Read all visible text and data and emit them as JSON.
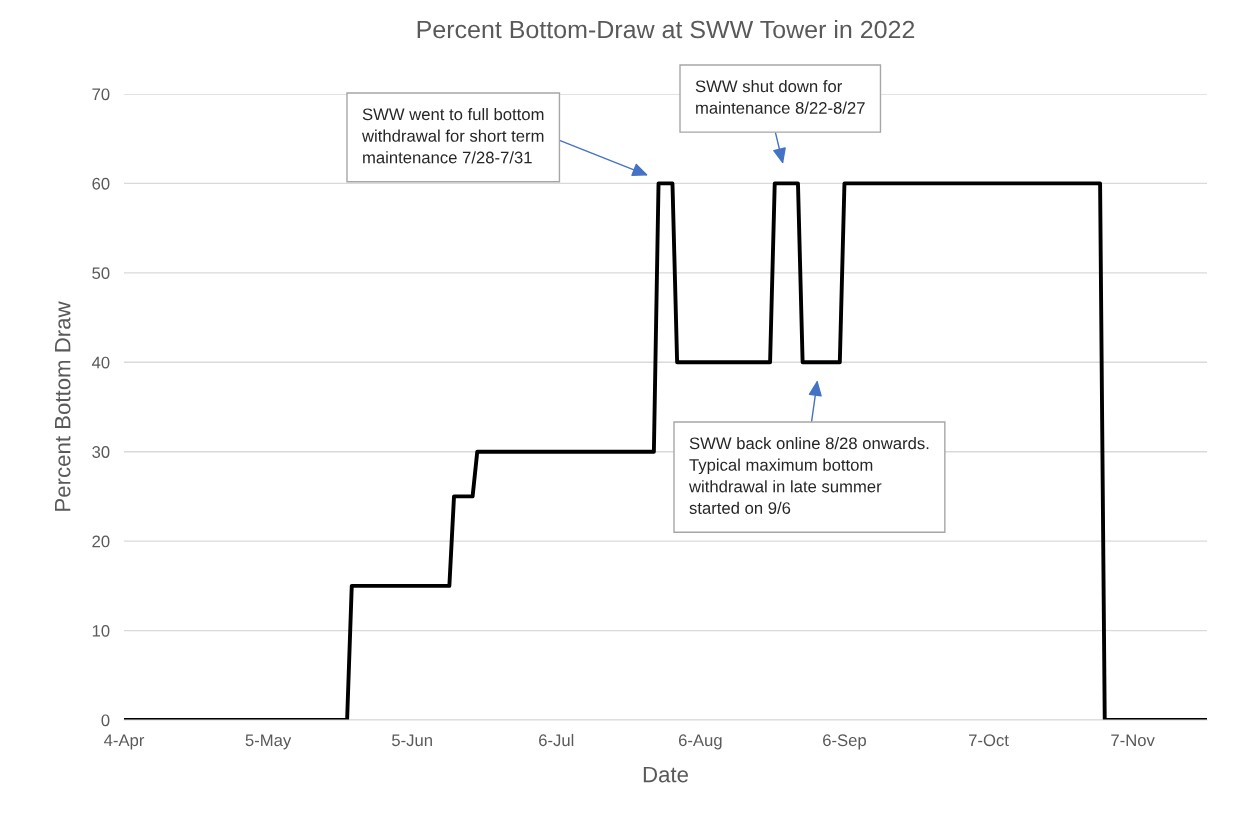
{
  "chart_data": {
    "type": "line",
    "title": "Percent Bottom-Draw at SWW Tower in 2022",
    "xlabel": "Date",
    "ylabel": "Percent Bottom Draw",
    "x": [
      "2022-04-04",
      "2022-05-22",
      "2022-05-23",
      "2022-06-13",
      "2022-06-14",
      "2022-06-18",
      "2022-06-19",
      "2022-07-27",
      "2022-07-28",
      "2022-07-31",
      "2022-08-01",
      "2022-08-21",
      "2022-08-22",
      "2022-08-27",
      "2022-08-28",
      "2022-09-05",
      "2022-09-06",
      "2022-10-31",
      "2022-11-01",
      "2022-11-23"
    ],
    "series": [
      {
        "color": "#000000",
        "values": [
          0,
          0,
          15,
          15,
          25,
          25,
          30,
          30,
          60,
          60,
          40,
          40,
          60,
          60,
          40,
          40,
          60,
          60,
          0,
          0
        ]
      }
    ],
    "xlim": [
      "2022-04-04",
      "2022-11-23"
    ],
    "xticks": [
      {
        "value": "2022-04-04",
        "label": "4-Apr"
      },
      {
        "value": "2022-05-05",
        "label": "5-May"
      },
      {
        "value": "2022-06-05",
        "label": "5-Jun"
      },
      {
        "value": "2022-07-06",
        "label": "6-Jul"
      },
      {
        "value": "2022-08-06",
        "label": "6-Aug"
      },
      {
        "value": "2022-09-06",
        "label": "6-Sep"
      },
      {
        "value": "2022-10-07",
        "label": "7-Oct"
      },
      {
        "value": "2022-11-07",
        "label": "7-Nov"
      }
    ],
    "ylim": [
      0,
      70
    ],
    "yticks": [
      0,
      10,
      20,
      30,
      40,
      50,
      60,
      70
    ],
    "grid": "y",
    "marker": "none",
    "line_style": "solid",
    "annotations": [
      "SWW went to full bottom\nwithdrawal for short term\nmaintenance 7/28-7/31",
      "SWW shut down for\nmaintenance 8/22-8/27",
      "SWW back online 8/28 onwards.\nTypical maximum bottom\nwithdrawal in late summer\nstarted on 9/6"
    ]
  }
}
